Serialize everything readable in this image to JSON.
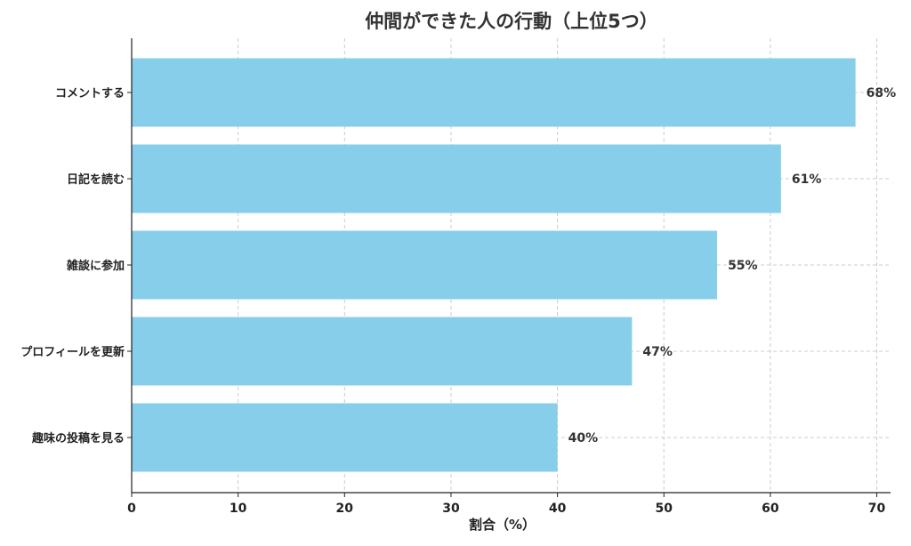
{
  "chart_data": {
    "type": "bar",
    "orientation": "horizontal",
    "title": "仲間ができた人の行動（上位5つ）",
    "xlabel": "割合（%）",
    "ylabel": "",
    "categories": [
      "コメントする",
      "日記を読む",
      "雑談に参加",
      "プロフィールを更新",
      "趣味の投稿を見る"
    ],
    "values": [
      68,
      61,
      55,
      47,
      40
    ],
    "data_labels": [
      "68%",
      "61%",
      "55%",
      "47%",
      "40%"
    ],
    "xlim": [
      0,
      72
    ],
    "xticks": [
      0,
      10,
      20,
      30,
      40,
      50,
      60,
      70
    ],
    "grid": true,
    "bar_color": "#87CEEB"
  }
}
